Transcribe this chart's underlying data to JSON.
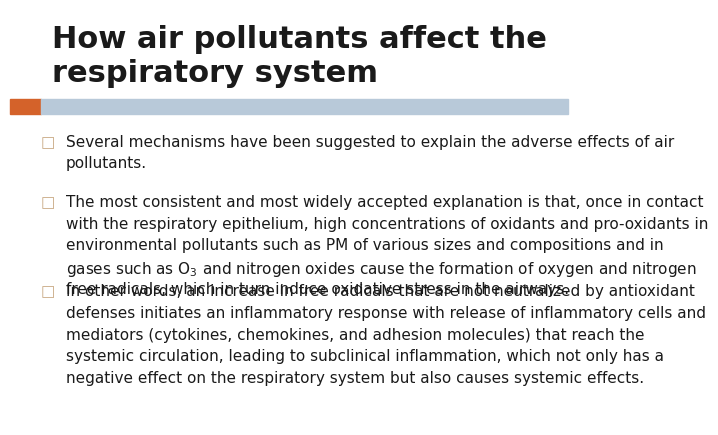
{
  "title": "How air pollutants affect the\nrespiratory system",
  "title_color": "#1a1a1a",
  "title_fontsize": 22,
  "title_fontweight": "bold",
  "bg_color": "#ffffff",
  "bar_orange_color": "#d4622a",
  "bar_blue_color": "#b8c9d9",
  "bullet_color": "#c8a882",
  "bullet_char": "□",
  "body_fontsize": 11,
  "body_color": "#1a1a1a",
  "bullets": [
    {
      "ystart": 0.7,
      "lines": [
        "Several mechanisms have been suggested to explain the adverse effects of air",
        "pollutants."
      ]
    },
    {
      "ystart": 0.555,
      "lines": [
        "The most consistent and most widely accepted explanation is that, once in contact",
        "with the respiratory epithelium, high concentrations of oxidants and pro-oxidants in",
        "environmental pollutants such as PM of various sizes and compositions and in",
        "gases such as O$_3$ and nitrogen oxides cause the formation of oxygen and nitrogen",
        "free radicals, which in turn induce oxidative stress in the airways."
      ]
    },
    {
      "ystart": 0.34,
      "lines": [
        "In other words, an increase in free radicals that are not neutralized by antioxidant",
        "defenses initiates an inflammatory response with release of inflammatory cells and",
        "mediators (cytokines, chemokines, and adhesion molecules) that reach the",
        "systemic circulation, leading to subclinical inflammation, which not only has a",
        "negative effect on the respiratory system but also causes systemic effects."
      ]
    }
  ]
}
